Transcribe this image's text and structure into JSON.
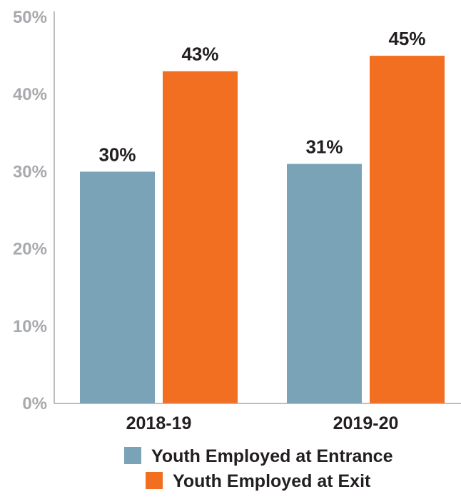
{
  "chart_data": {
    "type": "bar",
    "categories": [
      "2018-19",
      "2019-20"
    ],
    "series": [
      {
        "name": "Youth Employed at Entrance",
        "values": [
          30,
          31
        ],
        "labels": [
          "30%",
          "31%"
        ],
        "color": "#7ba3b8"
      },
      {
        "name": "Youth Employed at Exit",
        "values": [
          43,
          45
        ],
        "labels": [
          "43%",
          "45%"
        ],
        "color": "#f26f21"
      }
    ],
    "ylim": [
      0,
      50
    ],
    "yticks": [
      0,
      10,
      20,
      30,
      40,
      50
    ],
    "ytick_labels": [
      "0%",
      "10%",
      "20%",
      "30%",
      "40%",
      "50%"
    ],
    "grid": false,
    "legend_position": "bottom",
    "axis_color": "#a7a9ac"
  }
}
